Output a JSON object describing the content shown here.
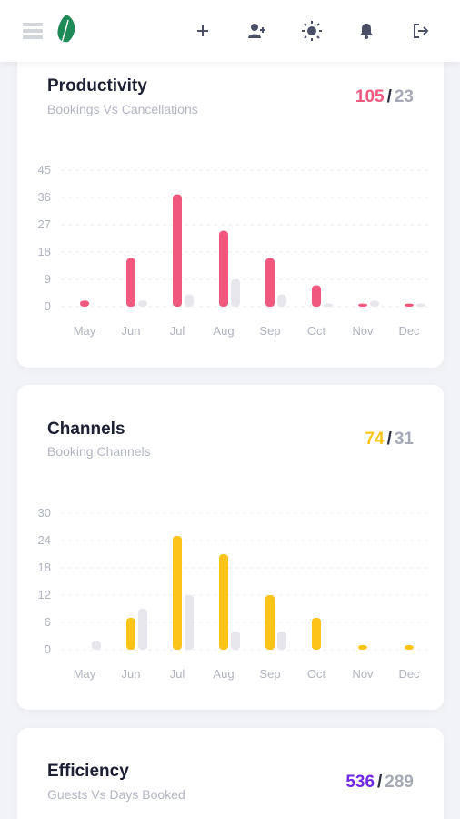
{
  "colors": {
    "pink": "#f0587e",
    "yellow": "#fcc419",
    "purple": "#7028e4",
    "gray": "#a6a9b6",
    "bar_secondary": "#e6e6ec"
  },
  "topbar": {
    "icons": [
      "menu-icon",
      "leaf-logo",
      "plus-icon",
      "user-plus-icon",
      "sun-icon",
      "bell-icon",
      "logout-icon"
    ]
  },
  "cards": [
    {
      "title": "Productivity",
      "subtitle": "Bookings Vs Cancellations",
      "stat_primary": "105",
      "stat_secondary": "23"
    },
    {
      "title": "Channels",
      "subtitle": "Booking Channels",
      "stat_primary": "74",
      "stat_secondary": "31"
    },
    {
      "title": "Efficiency",
      "subtitle": "Guests Vs Days Booked",
      "stat_primary": "536",
      "stat_secondary": "289"
    }
  ],
  "chart_data": [
    {
      "type": "bar",
      "categories": [
        "May",
        "Jun",
        "Jul",
        "Aug",
        "Sep",
        "Oct",
        "Nov",
        "Dec"
      ],
      "yticks": [
        0,
        9,
        18,
        27,
        36,
        45
      ],
      "ylim": [
        0,
        45
      ],
      "grid": true,
      "series": [
        {
          "values": [
            2,
            16,
            37,
            25,
            16,
            7,
            1,
            1
          ],
          "color": "#f0587e"
        },
        {
          "values": [
            0,
            2,
            4,
            9,
            4,
            1,
            2,
            1
          ],
          "color": "#e6e6ec"
        }
      ]
    },
    {
      "type": "bar",
      "categories": [
        "May",
        "Jun",
        "Jul",
        "Aug",
        "Sep",
        "Oct",
        "Nov",
        "Dec"
      ],
      "yticks": [
        0,
        6,
        12,
        18,
        24,
        30
      ],
      "ylim": [
        0,
        30
      ],
      "grid": true,
      "series": [
        {
          "values": [
            0,
            7,
            25,
            21,
            12,
            7,
            1,
            1
          ],
          "color": "#fcc419"
        },
        {
          "values": [
            2,
            9,
            12,
            4,
            4,
            0,
            0,
            0
          ],
          "color": "#e6e6ec"
        }
      ]
    }
  ]
}
